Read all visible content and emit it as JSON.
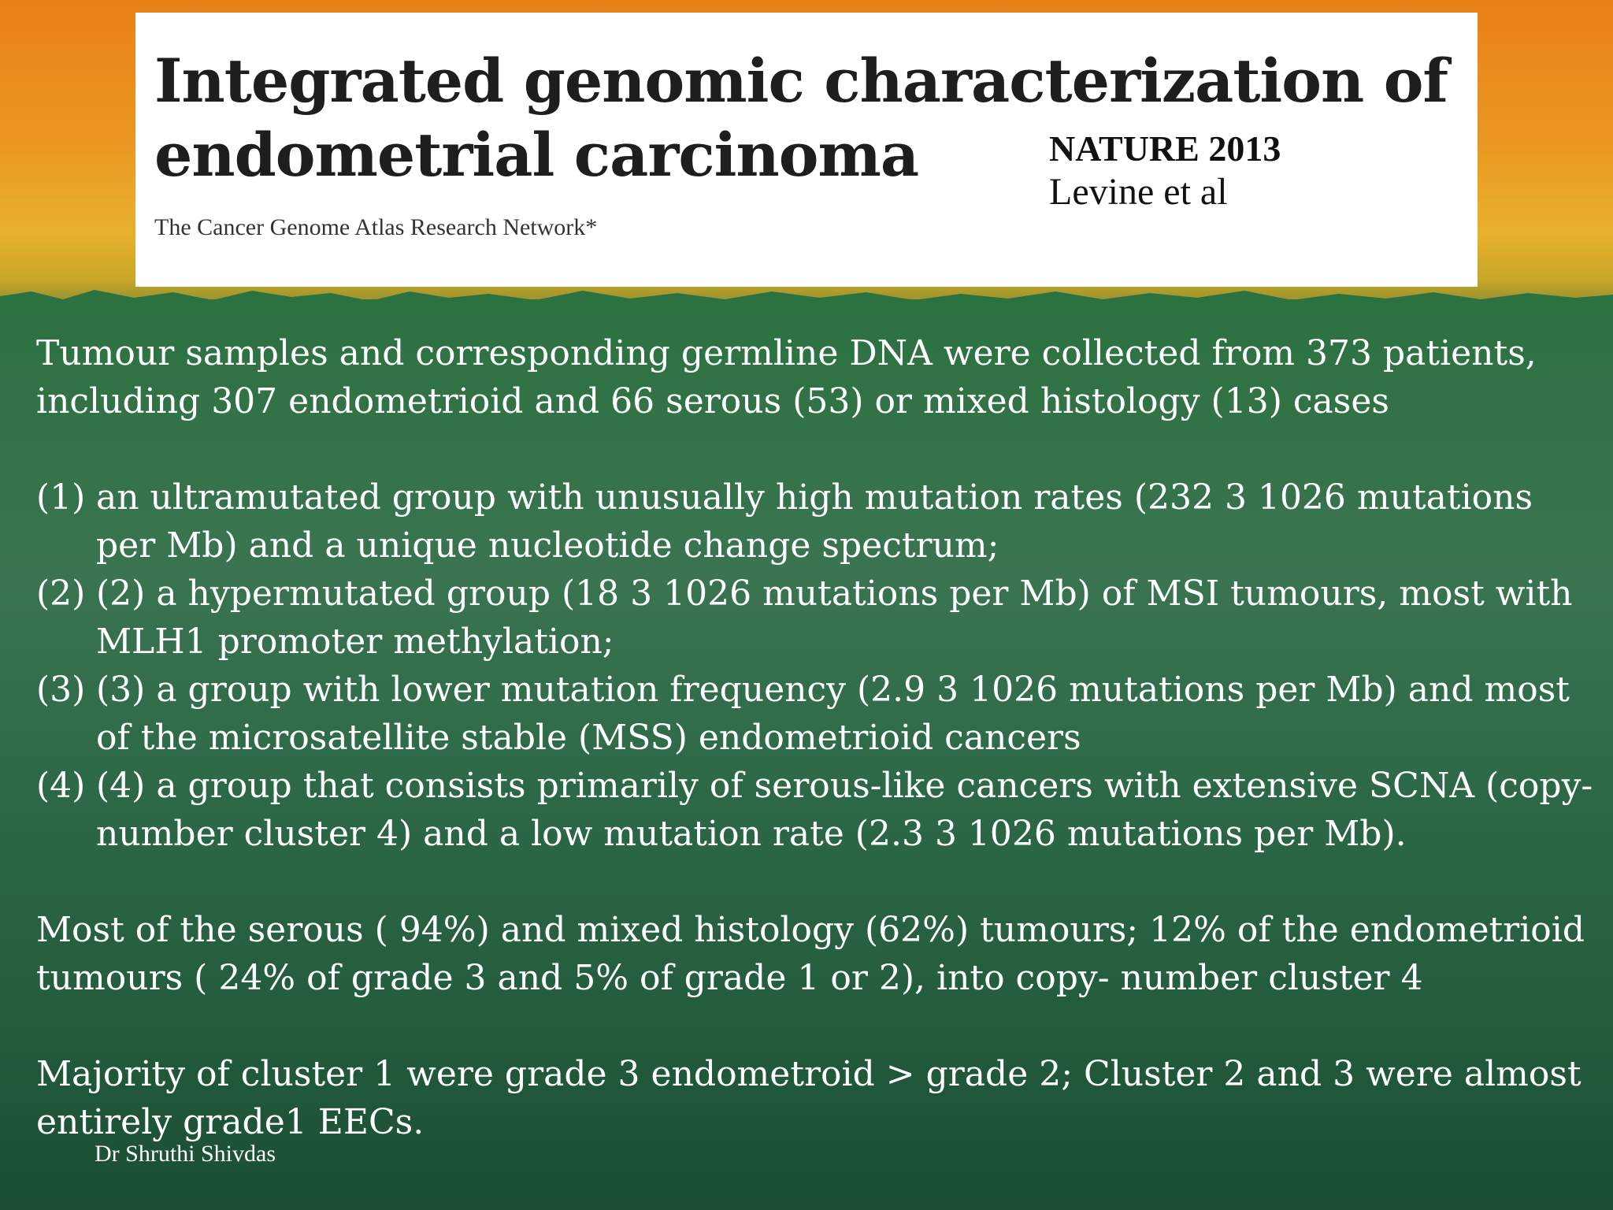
{
  "header": {
    "title_line1": "Integrated genomic characterization of",
    "title_line2": "endometrial carcinoma",
    "authors": "The Cancer Genome Atlas Research Network*",
    "journal": "NATURE 2013",
    "citation": "Levine et al"
  },
  "body": {
    "intro": "Tumour samples and corresponding germline DNA were collected from 373 patients, including 307 endometrioid and 66 serous (53) or mixed histology (13) cases",
    "groups": [
      {
        "num": "(1)",
        "text": "an ultramutated group with unusually high mutation rates (232 3 1026 mutations per Mb) and a unique nucleotide change spectrum;"
      },
      {
        "num": "(2)",
        "text": " (2) a hypermutated group (18 3 1026 mutations per Mb) of MSI tumours, most with MLH1 promoter methylation;"
      },
      {
        "num": "(3)",
        "text": "(3) a group with lower mutation frequency (2.9 3 1026 mutations per Mb) and most of the microsatellite stable (MSS) endometrioid cancers"
      },
      {
        "num": "(4)",
        "text": "(4) a group that consists primarily of serous-like cancers with extensive SCNA (copy-number cluster 4) and a low mutation rate (2.3 3 1026 mutations per Mb)."
      }
    ],
    "paragraph2": "Most of the serous ( 94%) and mixed histology (62%) tumours; 12% of the endometrioid tumours ( 24% of grade 3 and 5% of grade 1 or 2), into copy- number cluster 4",
    "paragraph3": "Majority of cluster 1 were grade 3 endometroid > grade 2; Cluster 2 and 3 were almost entirely grade1 EECs."
  },
  "footer": {
    "author": "Dr Shruthi Shivdas"
  }
}
